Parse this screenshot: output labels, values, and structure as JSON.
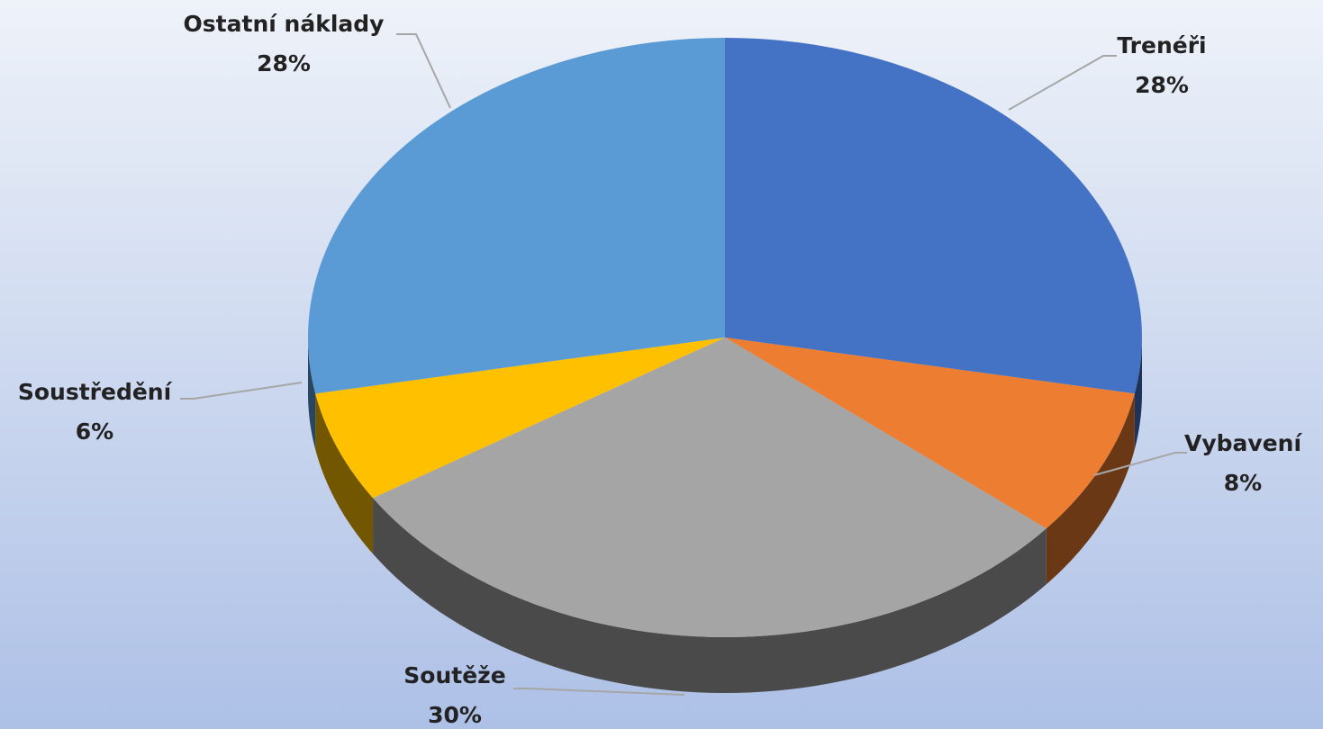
{
  "chart_data": {
    "type": "pie",
    "categories": [
      "Trenéři",
      "Vybavení",
      "Soutěže",
      "Soustředění",
      "Ostatní náklady"
    ],
    "values": [
      28,
      8,
      30,
      6,
      28
    ],
    "value_labels": [
      "28%",
      "8%",
      "30%",
      "6%",
      "28%"
    ],
    "colors": [
      "#4472c4",
      "#ed7d31",
      "#a5a5a5",
      "#ffc000",
      "#5b9bd5"
    ]
  }
}
